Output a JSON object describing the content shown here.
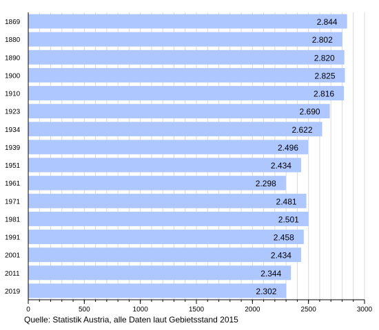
{
  "chart_data": {
    "type": "bar",
    "orientation": "horizontal",
    "categories": [
      "1869",
      "1880",
      "1890",
      "1900",
      "1910",
      "1923",
      "1934",
      "1939",
      "1951",
      "1961",
      "1971",
      "1981",
      "1991",
      "2001",
      "2011",
      "2019"
    ],
    "values": [
      2844,
      2802,
      2820,
      2825,
      2816,
      2690,
      2622,
      2496,
      2434,
      2298,
      2481,
      2501,
      2458,
      2434,
      2344,
      2302
    ],
    "data_labels": [
      "2.844",
      "2.802",
      "2.820",
      "2.825",
      "2.816",
      "2.690",
      "2.622",
      "2.496",
      "2.434",
      "2.298",
      "2.481",
      "2.501",
      "2.458",
      "2.434",
      "2.344",
      "2.302"
    ],
    "xlim": [
      0,
      3000
    ],
    "x_ticks": [
      0,
      500,
      1000,
      1500,
      2000,
      2500,
      3000
    ],
    "x_tick_labels": [
      "0",
      "500",
      "1000",
      "1500",
      "2000",
      "2500",
      "3000"
    ],
    "minor_ticks_step": 100,
    "grid": true,
    "title": "",
    "xlabel": "",
    "ylabel": "",
    "colors": {
      "bar": "#aec7ff",
      "grid": "#d9d9d9",
      "axis": "#000000"
    }
  },
  "source_note": "Quelle: Statistik Austria, alle Daten laut Gebietsstand 2015"
}
